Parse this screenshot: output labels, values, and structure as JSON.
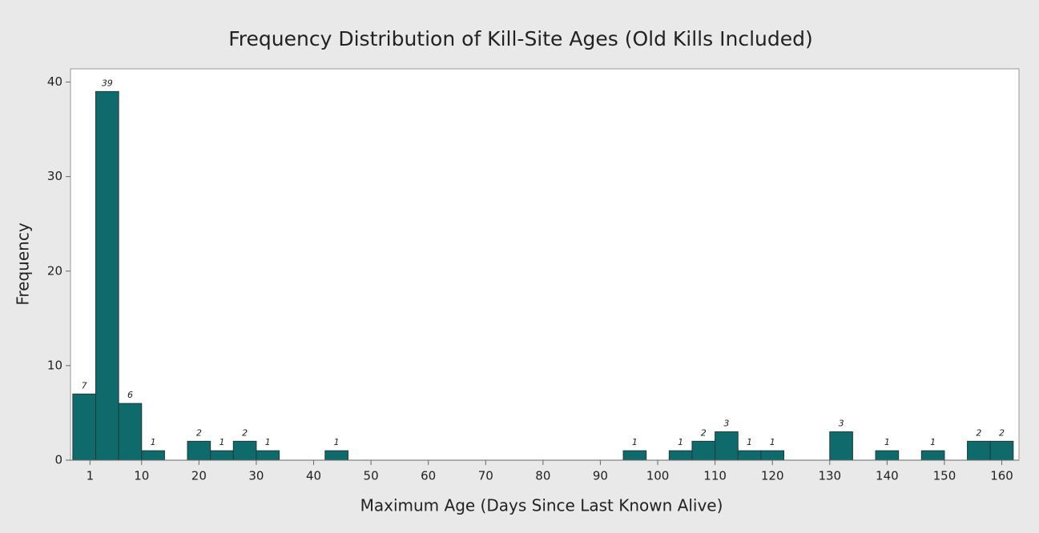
{
  "chart_data": {
    "type": "histogram",
    "title": "Frequency Distribution of Kill-Site Ages (Old Kills Included)",
    "x_label": "Maximum Age (Days Since Last Known Alive)",
    "y_label": "Frequency",
    "bins": [
      -2,
      2,
      6,
      10,
      14,
      18,
      22,
      26,
      30,
      34,
      38,
      42,
      46,
      50,
      54,
      58,
      62,
      66,
      70,
      74,
      78,
      82,
      86,
      90,
      94,
      98,
      102,
      106,
      110,
      114,
      118,
      122,
      126,
      130,
      134,
      138,
      142,
      146,
      150,
      154,
      158,
      162
    ],
    "values": [
      7,
      39,
      6,
      1,
      0,
      2,
      1,
      2,
      1,
      0,
      0,
      1,
      0,
      0,
      0,
      0,
      0,
      0,
      0,
      0,
      0,
      0,
      0,
      0,
      1,
      0,
      1,
      2,
      3,
      1,
      1,
      0,
      0,
      3,
      0,
      1,
      0,
      1,
      0,
      2,
      2
    ],
    "color": "#0f6b6b",
    "xlim": [
      -2.4,
      163
    ],
    "ylim": [
      0,
      41.4
    ],
    "xticks": [
      1,
      10,
      20,
      30,
      40,
      50,
      60,
      70,
      80,
      90,
      100,
      110,
      120,
      130,
      140,
      150,
      160
    ],
    "yticks": [
      0,
      10,
      20,
      30,
      40
    ]
  }
}
